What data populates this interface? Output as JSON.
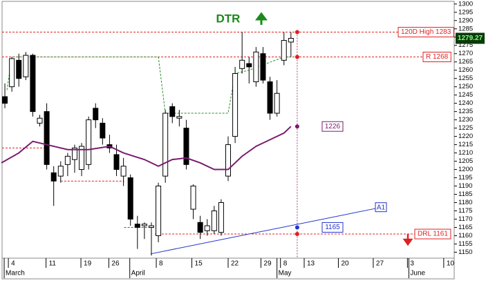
{
  "chart_data": {
    "type": "candlestick",
    "title": "DTR",
    "x": [
      0,
      1,
      2,
      3,
      4,
      5,
      6,
      7,
      8,
      9,
      10,
      11,
      12,
      13,
      14,
      15,
      16,
      17,
      18,
      19,
      20,
      21,
      22,
      23,
      24,
      25,
      26,
      27,
      28,
      29,
      30,
      31,
      32,
      33,
      34,
      35,
      36,
      37,
      38,
      39,
      40,
      41
    ],
    "open": [
      1244,
      1250,
      1266,
      1256,
      1269,
      1228,
      1235,
      1198,
      1196,
      1203,
      1206,
      1200,
      1203,
      1237,
      1228,
      1215,
      1209,
      1196,
      1195,
      1167,
      1166,
      1165,
      1160,
      1196,
      1238,
      1231,
      1225,
      1176,
      1168,
      1163,
      1163,
      1162,
      1196,
      1220,
      1261,
      1264,
      1253,
      1270,
      1253,
      1234,
      1266,
      1277
    ],
    "high": [
      1252,
      1268,
      1270,
      1271,
      1270,
      1233,
      1240,
      1202,
      1205,
      1210,
      1215,
      1216,
      1232,
      1240,
      1231,
      1221,
      1215,
      1207,
      1197,
      1172,
      1168,
      1168,
      1192,
      1236,
      1240,
      1236,
      1230,
      1191,
      1172,
      1170,
      1178,
      1182,
      1220,
      1262,
      1283,
      1268,
      1274,
      1274,
      1256,
      1254,
      1283,
      1283
    ],
    "low": [
      1237,
      1247,
      1250,
      1254,
      1232,
      1226,
      1200,
      1178,
      1192,
      1196,
      1198,
      1196,
      1200,
      1225,
      1215,
      1210,
      1196,
      1190,
      1166,
      1152,
      1158,
      1148,
      1156,
      1192,
      1228,
      1226,
      1200,
      1170,
      1158,
      1160,
      1161,
      1160,
      1193,
      1216,
      1258,
      1252,
      1250,
      1252,
      1230,
      1232,
      1263,
      1268
    ],
    "close": [
      1240,
      1267,
      1255,
      1269,
      1235,
      1231,
      1203,
      1193,
      1202,
      1208,
      1213,
      1214,
      1230,
      1230,
      1219,
      1213,
      1200,
      1202,
      1170,
      1165,
      1167,
      1166,
      1190,
      1234,
      1232,
      1232,
      1203,
      1190,
      1162,
      1166,
      1175,
      1180,
      1215,
      1258,
      1266,
      1262,
      1271,
      1254,
      1234,
      1246,
      1278,
      1279.27
    ],
    "up_color": "#ffffff",
    "down_color": "#000000",
    "last_price": 1279.27,
    "moving_average": {
      "color": "#7a1a6e",
      "x": [
        -0.5,
        2,
        4,
        6,
        9,
        12,
        15,
        17,
        20,
        22,
        24,
        26,
        28,
        30,
        32,
        34,
        36,
        38,
        40,
        41
      ],
      "values": [
        1204,
        1210,
        1217,
        1215,
        1212,
        1212,
        1214,
        1210,
        1206,
        1202,
        1206,
        1207,
        1204,
        1200,
        1200,
        1208,
        1214,
        1218,
        1222,
        1226
      ]
    },
    "stop_line": {
      "color": "#2a8a2a",
      "x": [
        0.3,
        1,
        22,
        23,
        32,
        33,
        35,
        40,
        41
      ],
      "values": [
        1248,
        1268,
        1268,
        1234,
        1234,
        1258,
        1260,
        1268,
        1268
      ]
    },
    "supports": [
      {
        "x": [
          -0.4,
          5.7
        ],
        "value": 1213
      },
      {
        "x": [
          8,
          17.1
        ],
        "value": 1193
      },
      {
        "x": [
          17.1,
          21.5
        ],
        "value": 1165
      }
    ],
    "levels": [
      {
        "label": "120D High 1283",
        "value": 1283,
        "color": "#e02020"
      },
      {
        "label": "R 1268",
        "value": 1268,
        "color": "#e02020"
      },
      {
        "label": "DRL 1161",
        "value": 1161,
        "color": "#e02020"
      }
    ],
    "markers": [
      {
        "label": "1226",
        "value": 1226,
        "color": "#7a1a6e"
      },
      {
        "label": "1165",
        "value": 1165,
        "color": "#2233cc"
      }
    ],
    "trendline": {
      "label": "A1",
      "color": "#2233cc",
      "x": [
        20.9,
        53.8
      ],
      "values": [
        1149,
        1177
      ]
    },
    "marker_x": 41.9,
    "xlim": [
      -0.5,
      64.5
    ],
    "ylim": [
      1146,
      1302
    ],
    "xticks": [
      {
        "value": 0.5,
        "label": "4"
      },
      {
        "value": 5.9,
        "label": "11"
      },
      {
        "value": 10.9,
        "label": "19"
      },
      {
        "value": 14.9,
        "label": "26"
      },
      {
        "value": 21.7,
        "label": "8"
      },
      {
        "value": 26.8,
        "label": "15"
      },
      {
        "value": 32,
        "label": "22"
      },
      {
        "value": 36.7,
        "label": "29"
      },
      {
        "value": 39.5,
        "label": "8"
      },
      {
        "value": 42.9,
        "label": "13"
      },
      {
        "value": 47.8,
        "label": "20"
      },
      {
        "value": 52.8,
        "label": "27"
      },
      {
        "value": 57.7,
        "label": "3"
      },
      {
        "value": 62.9,
        "label": "10"
      }
    ],
    "months": [
      {
        "value": 0.1,
        "label": "March"
      },
      {
        "value": 18.1,
        "label": "April"
      },
      {
        "value": 39.2,
        "label": "May"
      },
      {
        "value": 58.1,
        "label": "June"
      }
    ],
    "yticks": [
      1150,
      1155,
      1160,
      1165,
      1170,
      1175,
      1180,
      1185,
      1190,
      1195,
      1200,
      1205,
      1210,
      1215,
      1220,
      1225,
      1230,
      1235,
      1240,
      1245,
      1250,
      1255,
      1260,
      1265,
      1270,
      1275,
      1280,
      1285,
      1290,
      1295,
      1300
    ]
  }
}
